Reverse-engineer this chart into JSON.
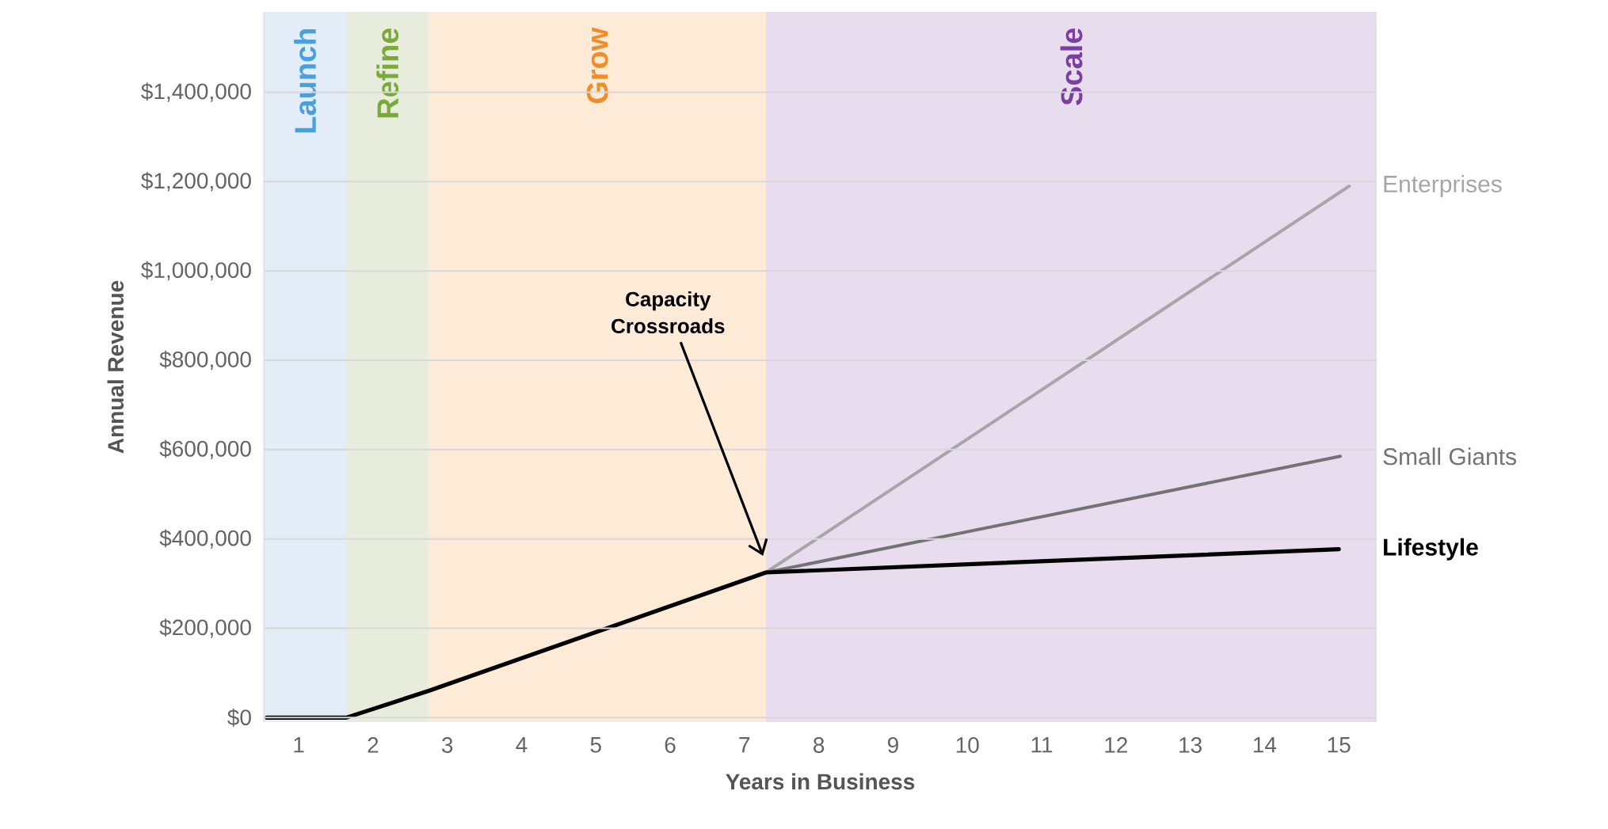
{
  "chart_data": {
    "type": "line",
    "xlabel": "Years in Business",
    "ylabel": "Annual Revenue",
    "xlim": [
      0.53,
      15.51
    ],
    "ylim": [
      -10000,
      1580000
    ],
    "xticks": [
      1,
      2,
      3,
      4,
      5,
      6,
      7,
      8,
      9,
      10,
      11,
      12,
      13,
      14,
      15
    ],
    "yticks": [
      {
        "value": 0,
        "label": "$0"
      },
      {
        "value": 200000,
        "label": "$200,000"
      },
      {
        "value": 400000,
        "label": "$400,000"
      },
      {
        "value": 600000,
        "label": "$600,000"
      },
      {
        "value": 800000,
        "label": "$800,000"
      },
      {
        "value": 1000000,
        "label": "$1,000,000"
      },
      {
        "value": 1200000,
        "label": "$1,200,000"
      },
      {
        "value": 1400000,
        "label": "$1,400,000"
      }
    ],
    "grid": "y",
    "legend": false,
    "marker": "none",
    "line_style": "solid",
    "bands": [
      {
        "axis": "x",
        "from": 0.53,
        "to": 1.64,
        "label": "Launch",
        "color": "#e3edf7"
      },
      {
        "axis": "x",
        "from": 1.64,
        "to": 2.75,
        "label": "Refine",
        "color": "#e8ecdc"
      },
      {
        "axis": "x",
        "from": 2.75,
        "to": 7.29,
        "label": "Grow",
        "color": "#fdebd8"
      },
      {
        "axis": "x",
        "from": 7.29,
        "to": 15.51,
        "label": "Scale",
        "color": "#e8ddee"
      }
    ],
    "series": [
      {
        "name": "Enterprises",
        "color": "#a6a6a6",
        "x": [
          7.29,
          15.14
        ],
        "values": [
          325000,
          1190000
        ]
      },
      {
        "name": "Small Giants",
        "color": "#737373",
        "x": [
          7.29,
          15.02
        ],
        "values": [
          325000,
          585000
        ]
      },
      {
        "name": "Lifestyle",
        "color": "#000000",
        "x": [
          0.57,
          1.64,
          2.75,
          7.29,
          15.0
        ],
        "values": [
          0,
          0,
          60000,
          325000,
          377000
        ]
      }
    ],
    "annotations": [
      {
        "text": "Capacity Crossroads",
        "x": 7.25,
        "y": 362000
      }
    ]
  }
}
